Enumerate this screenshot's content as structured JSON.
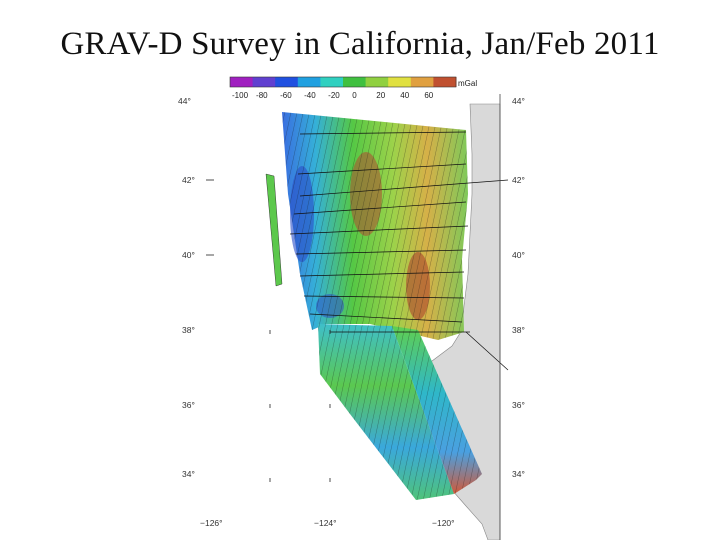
{
  "title": "GRAV-D Survey in California, Jan/Feb 2011",
  "colorbar": {
    "unit": "mGal",
    "ticks": [
      "-100",
      "-80",
      "-60",
      "-40",
      "-20",
      "0",
      "20",
      "40",
      "60"
    ],
    "colors": [
      "#a020c0",
      "#6040d0",
      "#2050e0",
      "#20a0e0",
      "#30d0c0",
      "#40c040",
      "#90d040",
      "#e0e040",
      "#e0a040",
      "#c05030"
    ]
  },
  "lat_labels_left": [
    "44°",
    "42°",
    "40°",
    "38°",
    "36°",
    "34°"
  ],
  "lat_labels_right": [
    "44°",
    "42°",
    "40°",
    "38°",
    "36°",
    "34°"
  ],
  "lon_labels": [
    "−126°",
    "−124°",
    "−120°"
  ]
}
